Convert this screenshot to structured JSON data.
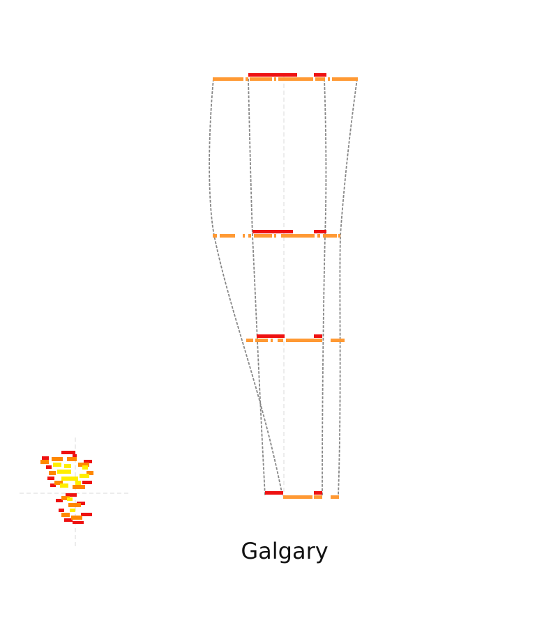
{
  "title": "Galgary",
  "colors": {
    "background": "#ffffff",
    "outline": "#888888",
    "centerline": "#d0d0d0",
    "primary_bar": "#ff9933",
    "highlight_bar": "#ee1111",
    "blob_dark": "#ee1111",
    "blob_mid": "#ff8800",
    "blob_light": "#ffee00"
  }
}
